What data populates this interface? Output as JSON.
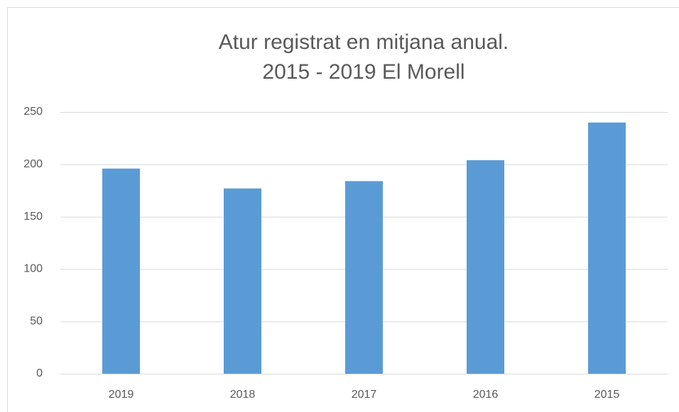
{
  "chart_data": {
    "type": "bar",
    "title": [
      "Atur registrat en mitjana anual.",
      "2015 - 2019 El Morell"
    ],
    "categories": [
      "2019",
      "2018",
      "2017",
      "2016",
      "2015"
    ],
    "values": [
      196,
      177,
      184,
      204,
      240
    ],
    "color": "#5b9bd5",
    "ylim": [
      0,
      250
    ],
    "yticks": [
      0,
      50,
      100,
      150,
      200,
      250
    ],
    "grid": true
  }
}
